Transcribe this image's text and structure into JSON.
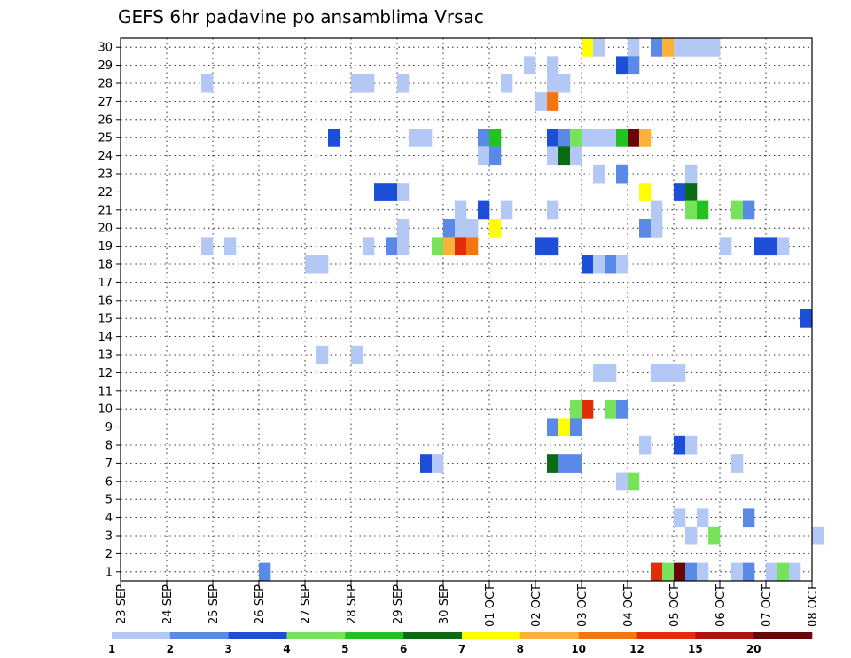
{
  "chart_data": {
    "type": "heatmap",
    "title": "GEFS 6hr padavine po ansamblima Vrsac",
    "xlabel": "",
    "ylabel": "",
    "x_ticks": [
      "23 SEP",
      "24 SEP",
      "25 SEP",
      "26 SEP",
      "27 SEP",
      "28 SEP",
      "29 SEP",
      "30 SEP",
      "01 OCT",
      "02 OCT",
      "03 OCT",
      "04 OCT",
      "05 OCT",
      "06 OCT",
      "07 OCT",
      "08 OCT"
    ],
    "y_ticks": [
      "1",
      "2",
      "3",
      "4",
      "5",
      "6",
      "7",
      "8",
      "9",
      "10",
      "11",
      "12",
      "13",
      "14",
      "15",
      "16",
      "17",
      "18",
      "19",
      "20",
      "21",
      "22",
      "23",
      "24",
      "25",
      "26",
      "27",
      "28",
      "29",
      "30"
    ],
    "x_range_days": [
      0,
      15
    ],
    "step_hours": 6,
    "members": 30,
    "legend": {
      "labels": [
        "1",
        "2",
        "3",
        "4",
        "5",
        "6",
        "7",
        "8",
        "10",
        "12",
        "15",
        "20"
      ],
      "colors": [
        "#b3c8f5",
        "#5b89e8",
        "#1c4ed8",
        "#77e35a",
        "#22c320",
        "#0b6b12",
        "#ffff00",
        "#fcb13a",
        "#f5760e",
        "#e12d0c",
        "#b3130f",
        "#6a0507"
      ]
    },
    "cells": [
      {
        "member": 30,
        "day": 10.0,
        "level": 6
      },
      {
        "member": 30,
        "day": 10.25,
        "level": 0
      },
      {
        "member": 30,
        "day": 11.0,
        "level": 0
      },
      {
        "member": 30,
        "day": 11.5,
        "level": 1
      },
      {
        "member": 30,
        "day": 11.75,
        "level": 7
      },
      {
        "member": 30,
        "day": 12.0,
        "level": 0
      },
      {
        "member": 30,
        "day": 12.25,
        "level": 0
      },
      {
        "member": 30,
        "day": 12.5,
        "level": 0
      },
      {
        "member": 30,
        "day": 12.75,
        "level": 0
      },
      {
        "member": 29,
        "day": 8.75,
        "level": 0
      },
      {
        "member": 29,
        "day": 9.25,
        "level": 0
      },
      {
        "member": 29,
        "day": 10.75,
        "level": 2
      },
      {
        "member": 29,
        "day": 11.0,
        "level": 1
      },
      {
        "member": 28,
        "day": 1.75,
        "level": 0
      },
      {
        "member": 28,
        "day": 5.0,
        "level": 0
      },
      {
        "member": 28,
        "day": 5.25,
        "level": 0
      },
      {
        "member": 28,
        "day": 6.0,
        "level": 0
      },
      {
        "member": 28,
        "day": 8.25,
        "level": 0
      },
      {
        "member": 28,
        "day": 9.25,
        "level": 0
      },
      {
        "member": 28,
        "day": 9.5,
        "level": 0
      },
      {
        "member": 27,
        "day": 9.0,
        "level": 0
      },
      {
        "member": 27,
        "day": 9.25,
        "level": 8
      },
      {
        "member": 25,
        "day": 4.5,
        "level": 2
      },
      {
        "member": 25,
        "day": 6.25,
        "level": 0
      },
      {
        "member": 25,
        "day": 6.5,
        "level": 0
      },
      {
        "member": 25,
        "day": 7.75,
        "level": 1
      },
      {
        "member": 25,
        "day": 8.0,
        "level": 4
      },
      {
        "member": 25,
        "day": 9.25,
        "level": 2
      },
      {
        "member": 25,
        "day": 9.5,
        "level": 1
      },
      {
        "member": 25,
        "day": 9.75,
        "level": 3
      },
      {
        "member": 25,
        "day": 10.0,
        "level": 0
      },
      {
        "member": 25,
        "day": 10.25,
        "level": 0
      },
      {
        "member": 25,
        "day": 10.5,
        "level": 0
      },
      {
        "member": 25,
        "day": 10.75,
        "level": 4
      },
      {
        "member": 25,
        "day": 11.0,
        "level": 11
      },
      {
        "member": 25,
        "day": 11.25,
        "level": 7
      },
      {
        "member": 24,
        "day": 7.75,
        "level": 0
      },
      {
        "member": 24,
        "day": 8.0,
        "level": 1
      },
      {
        "member": 24,
        "day": 9.25,
        "level": 0
      },
      {
        "member": 24,
        "day": 9.5,
        "level": 5
      },
      {
        "member": 24,
        "day": 9.75,
        "level": 0
      },
      {
        "member": 23,
        "day": 10.25,
        "level": 0
      },
      {
        "member": 23,
        "day": 10.75,
        "level": 1
      },
      {
        "member": 23,
        "day": 12.25,
        "level": 0
      },
      {
        "member": 22,
        "day": 5.5,
        "level": 2
      },
      {
        "member": 22,
        "day": 5.75,
        "level": 2
      },
      {
        "member": 22,
        "day": 6.0,
        "level": 0
      },
      {
        "member": 22,
        "day": 11.25,
        "level": 6
      },
      {
        "member": 22,
        "day": 12.0,
        "level": 2
      },
      {
        "member": 22,
        "day": 12.25,
        "level": 5
      },
      {
        "member": 21,
        "day": 7.25,
        "level": 0
      },
      {
        "member": 21,
        "day": 7.75,
        "level": 2
      },
      {
        "member": 21,
        "day": 8.25,
        "level": 0
      },
      {
        "member": 21,
        "day": 9.25,
        "level": 0
      },
      {
        "member": 21,
        "day": 11.5,
        "level": 0
      },
      {
        "member": 21,
        "day": 12.25,
        "level": 3
      },
      {
        "member": 21,
        "day": 12.5,
        "level": 4
      },
      {
        "member": 21,
        "day": 13.25,
        "level": 3
      },
      {
        "member": 21,
        "day": 13.5,
        "level": 1
      },
      {
        "member": 20,
        "day": 6.0,
        "level": 0
      },
      {
        "member": 20,
        "day": 7.0,
        "level": 1
      },
      {
        "member": 20,
        "day": 7.25,
        "level": 0
      },
      {
        "member": 20,
        "day": 7.5,
        "level": 0
      },
      {
        "member": 20,
        "day": 8.0,
        "level": 6
      },
      {
        "member": 20,
        "day": 11.25,
        "level": 1
      },
      {
        "member": 20,
        "day": 11.5,
        "level": 0
      },
      {
        "member": 19,
        "day": 1.75,
        "level": 0
      },
      {
        "member": 19,
        "day": 2.25,
        "level": 0
      },
      {
        "member": 19,
        "day": 5.25,
        "level": 0
      },
      {
        "member": 19,
        "day": 5.75,
        "level": 1
      },
      {
        "member": 19,
        "day": 6.0,
        "level": 0
      },
      {
        "member": 19,
        "day": 6.75,
        "level": 3
      },
      {
        "member": 19,
        "day": 7.0,
        "level": 7
      },
      {
        "member": 19,
        "day": 7.25,
        "level": 9
      },
      {
        "member": 19,
        "day": 7.5,
        "level": 8
      },
      {
        "member": 19,
        "day": 9.0,
        "level": 2
      },
      {
        "member": 19,
        "day": 9.25,
        "level": 2
      },
      {
        "member": 19,
        "day": 13.0,
        "level": 0
      },
      {
        "member": 19,
        "day": 13.75,
        "level": 2
      },
      {
        "member": 19,
        "day": 14.0,
        "level": 2
      },
      {
        "member": 19,
        "day": 14.25,
        "level": 0
      },
      {
        "member": 18,
        "day": 4.0,
        "level": 0
      },
      {
        "member": 18,
        "day": 4.25,
        "level": 0
      },
      {
        "member": 18,
        "day": 10.0,
        "level": 2
      },
      {
        "member": 18,
        "day": 10.25,
        "level": 0
      },
      {
        "member": 18,
        "day": 10.5,
        "level": 1
      },
      {
        "member": 18,
        "day": 10.75,
        "level": 0
      },
      {
        "member": 15,
        "day": 14.75,
        "level": 2
      },
      {
        "member": 13,
        "day": 4.25,
        "level": 0
      },
      {
        "member": 13,
        "day": 5.0,
        "level": 0
      },
      {
        "member": 12,
        "day": 10.25,
        "level": 0
      },
      {
        "member": 12,
        "day": 10.5,
        "level": 0
      },
      {
        "member": 12,
        "day": 11.5,
        "level": 0
      },
      {
        "member": 12,
        "day": 11.75,
        "level": 0
      },
      {
        "member": 12,
        "day": 12.0,
        "level": 0
      },
      {
        "member": 10,
        "day": 9.75,
        "level": 3
      },
      {
        "member": 10,
        "day": 10.0,
        "level": 9
      },
      {
        "member": 10,
        "day": 10.5,
        "level": 3
      },
      {
        "member": 10,
        "day": 10.75,
        "level": 1
      },
      {
        "member": 9,
        "day": 9.25,
        "level": 1
      },
      {
        "member": 9,
        "day": 9.5,
        "level": 6
      },
      {
        "member": 9,
        "day": 9.75,
        "level": 1
      },
      {
        "member": 8,
        "day": 11.25,
        "level": 0
      },
      {
        "member": 8,
        "day": 12.0,
        "level": 2
      },
      {
        "member": 8,
        "day": 12.25,
        "level": 0
      },
      {
        "member": 7,
        "day": 6.5,
        "level": 2
      },
      {
        "member": 7,
        "day": 6.75,
        "level": 0
      },
      {
        "member": 7,
        "day": 9.25,
        "level": 5
      },
      {
        "member": 7,
        "day": 9.5,
        "level": 1
      },
      {
        "member": 7,
        "day": 9.75,
        "level": 1
      },
      {
        "member": 7,
        "day": 13.25,
        "level": 0
      },
      {
        "member": 6,
        "day": 10.75,
        "level": 0
      },
      {
        "member": 6,
        "day": 11.0,
        "level": 3
      },
      {
        "member": 4,
        "day": 12.0,
        "level": 0
      },
      {
        "member": 4,
        "day": 12.5,
        "level": 0
      },
      {
        "member": 4,
        "day": 13.5,
        "level": 1
      },
      {
        "member": 3,
        "day": 12.25,
        "level": 0
      },
      {
        "member": 3,
        "day": 12.75,
        "level": 3
      },
      {
        "member": 3,
        "day": 15.0,
        "level": 0
      },
      {
        "member": 1,
        "day": 3.0,
        "level": 1
      },
      {
        "member": 1,
        "day": 11.5,
        "level": 9
      },
      {
        "member": 1,
        "day": 11.75,
        "level": 3
      },
      {
        "member": 1,
        "day": 12.0,
        "level": 11
      },
      {
        "member": 1,
        "day": 12.25,
        "level": 1
      },
      {
        "member": 1,
        "day": 12.5,
        "level": 0
      },
      {
        "member": 1,
        "day": 13.25,
        "level": 0
      },
      {
        "member": 1,
        "day": 13.5,
        "level": 1
      },
      {
        "member": 1,
        "day": 14.0,
        "level": 0
      },
      {
        "member": 1,
        "day": 14.25,
        "level": 3
      },
      {
        "member": 1,
        "day": 14.5,
        "level": 0
      }
    ]
  }
}
